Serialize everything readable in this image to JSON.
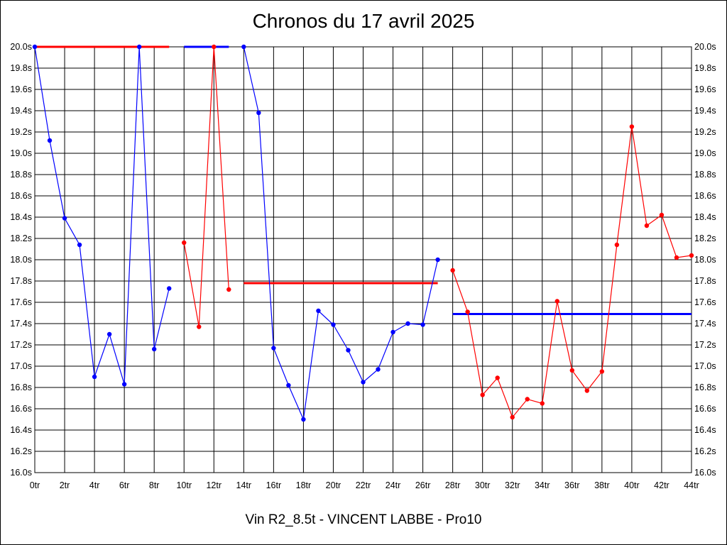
{
  "chart_data": {
    "type": "line",
    "title": "Chronos du 17 avril 2025",
    "subtitle": "Vin R2_8.5t - VINCENT LABBE - Pro10",
    "xlabel": "",
    "ylabel": "",
    "xlim": [
      0,
      44
    ],
    "ylim": [
      16.0,
      20.0
    ],
    "grid": true,
    "x_ticks": [
      "0tr",
      "2tr",
      "4tr",
      "6tr",
      "8tr",
      "10tr",
      "12tr",
      "14tr",
      "16tr",
      "18tr",
      "20tr",
      "22tr",
      "24tr",
      "26tr",
      "28tr",
      "30tr",
      "32tr",
      "34tr",
      "36tr",
      "38tr",
      "40tr",
      "42tr",
      "44tr"
    ],
    "y_ticks": [
      "20.0s",
      "19.8s",
      "19.6s",
      "19.4s",
      "19.2s",
      "19.0s",
      "18.8s",
      "18.6s",
      "18.4s",
      "18.2s",
      "18.0s",
      "17.8s",
      "17.6s",
      "17.4s",
      "17.2s",
      "17.0s",
      "16.8s",
      "16.6s",
      "16.4s",
      "16.2s",
      "16.0s"
    ],
    "series": [
      {
        "color": "#0000ff",
        "x": [
          0,
          1,
          2,
          3,
          4,
          5,
          6,
          7,
          8,
          9
        ],
        "y": [
          20.0,
          19.12,
          18.39,
          18.14,
          16.9,
          17.3,
          16.83,
          20.0,
          17.16,
          17.73
        ]
      },
      {
        "color": "#ff0000",
        "x": [
          10,
          11,
          12,
          13
        ],
        "y": [
          18.16,
          17.37,
          20.0,
          17.72
        ]
      },
      {
        "color": "#0000ff",
        "x": [
          14,
          15,
          16,
          17,
          18,
          19,
          20,
          21,
          22,
          23,
          24,
          25,
          26,
          27
        ],
        "y": [
          20.0,
          19.38,
          17.17,
          16.82,
          16.5,
          17.52,
          17.39,
          17.15,
          16.85,
          16.97,
          17.32,
          17.4,
          17.39,
          18.0
        ]
      },
      {
        "color": "#ff0000",
        "x": [
          28,
          29,
          30,
          31,
          32,
          33,
          34,
          35,
          36,
          37,
          38,
          39,
          40,
          41,
          42,
          43,
          44
        ],
        "y": [
          17.9,
          17.51,
          16.73,
          16.89,
          16.52,
          16.69,
          16.65,
          17.61,
          16.96,
          16.77,
          16.95,
          18.14,
          19.25,
          18.32,
          18.42,
          18.02,
          18.04
        ]
      }
    ],
    "average_lines": [
      {
        "color": "#ff0000",
        "x": [
          0,
          9
        ],
        "y": 20.0
      },
      {
        "color": "#0000ff",
        "x": [
          10,
          13
        ],
        "y": 20.0
      },
      {
        "color": "#ff0000",
        "x": [
          14,
          27
        ],
        "y": 17.78
      },
      {
        "color": "#0000ff",
        "x": [
          28,
          44
        ],
        "y": 17.49
      }
    ]
  }
}
